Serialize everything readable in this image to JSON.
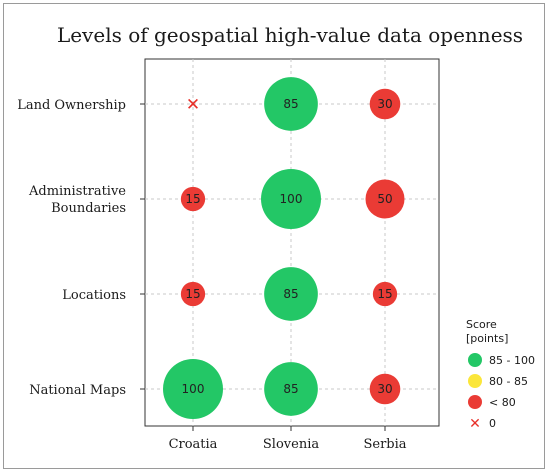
{
  "chart_data": {
    "type": "bubble",
    "title": "Levels of geospatial high-value data openness",
    "categories": [
      "Croatia",
      "Slovenia",
      "Serbia"
    ],
    "rows": [
      "Land Ownership",
      "Administrative Boundaries",
      "Locations",
      "National Maps"
    ],
    "values": [
      [
        0,
        85,
        30
      ],
      [
        15,
        100,
        50
      ],
      [
        15,
        85,
        15
      ],
      [
        100,
        85,
        30
      ]
    ],
    "grid": true,
    "legend": {
      "title": "Score [points]",
      "position": "right",
      "entries": [
        {
          "label": "85 - 100",
          "color": "#23c766",
          "marker": "circle"
        },
        {
          "label": "80 - 85",
          "color": "#fbe63a",
          "marker": "circle"
        },
        {
          "label": "< 80",
          "color": "#ea3b35",
          "marker": "circle"
        },
        {
          "label": "0",
          "color": "#e8302a",
          "marker": "cross"
        }
      ]
    },
    "colors": {
      "high": "#23c766",
      "mid": "#fbe63a",
      "low": "#ea3b35",
      "zero": "#e8302a"
    }
  }
}
